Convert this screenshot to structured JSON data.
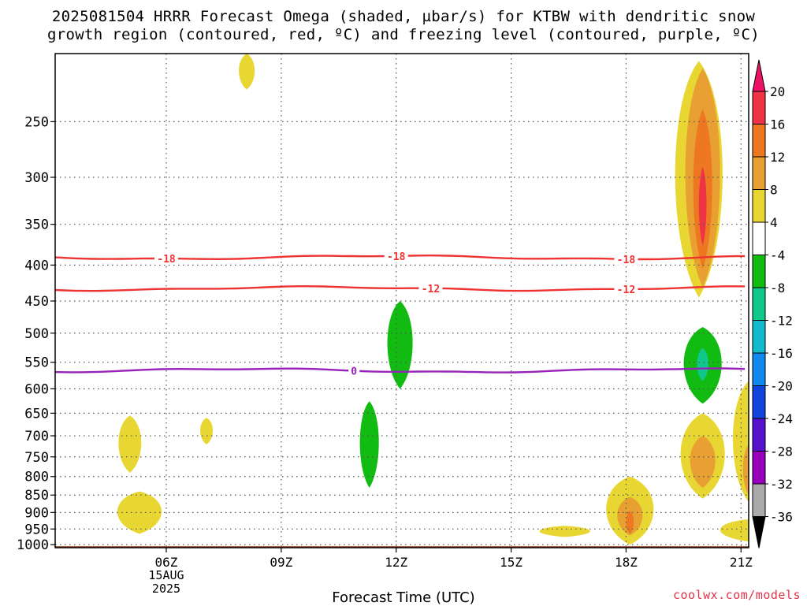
{
  "title_line1": "2025081504 HRRR Forecast Omega (shaded, µbar/s) for KTBW with dendritic snow",
  "title_line2": "growth region (contoured, red, ºC) and freezing level (contoured, purple, ºC)",
  "credit": "coolwx.com/models",
  "chart_data": {
    "type": "time-height cross section",
    "xlabel": "Forecast Time (UTC)",
    "x_ticks": [
      "06Z",
      "09Z",
      "12Z",
      "15Z",
      "18Z",
      "21Z"
    ],
    "x_tick_hours": [
      6,
      9,
      12,
      15,
      18,
      21
    ],
    "xlim_hours": [
      3.1,
      21.2
    ],
    "x_date_label": [
      "15AUG",
      "2025"
    ],
    "y_ticks": [
      250,
      300,
      350,
      400,
      450,
      500,
      550,
      600,
      650,
      700,
      750,
      800,
      850,
      900,
      950,
      1000
    ],
    "ylim_hPa": [
      200,
      1010
    ],
    "grid": true,
    "colorbar": {
      "levels": [
        20,
        16,
        12,
        8,
        4,
        -4,
        -8,
        -12,
        -16,
        -20,
        -24,
        -28,
        -32,
        -36
      ],
      "colors": [
        "#ee1166",
        "#ee3344",
        "#ee7722",
        "#e8a033",
        "#e8d633",
        "#ffffff",
        "#11bb11",
        "#11c88c",
        "#11bbcc",
        "#1188ee",
        "#1144dd",
        "#5511cc",
        "#9900bb",
        "#aaaaaa",
        "#000000"
      ],
      "placement": "right"
    },
    "contour_lines": [
      {
        "name": "-18",
        "color": "#ee3333",
        "pressure_hPa": 390,
        "labels_at_hours": [
          6.0,
          12.0,
          18.0
        ]
      },
      {
        "name": "-12",
        "color": "#ee3333",
        "pressure_hPa": 432,
        "labels_at_hours": [
          12.9,
          18.0
        ]
      },
      {
        "name": "0",
        "color": "#9922bb",
        "pressure_hPa": 565,
        "labels_at_hours": [
          10.9
        ]
      }
    ],
    "omega_regions": [
      {
        "hour": 5.05,
        "hw": 0.36,
        "top": 655,
        "bottom": 790,
        "value": 5
      },
      {
        "hour": 7.05,
        "hw": 0.2,
        "top": 660,
        "bottom": 720,
        "value": 5
      },
      {
        "hour": 8.1,
        "hw": 0.25,
        "top": 200,
        "bottom": 225,
        "value": 5
      },
      {
        "hour": 5.3,
        "hw": 0.7,
        "top": 840,
        "bottom": 965,
        "value": 5
      },
      {
        "hour": 11.3,
        "hw": 0.3,
        "top": 625,
        "bottom": 830,
        "value": -6
      },
      {
        "hour": 12.1,
        "hw": 0.4,
        "top": 450,
        "bottom": 600,
        "value": -6
      },
      {
        "hour": 16.4,
        "hw": 0.8,
        "top": 940,
        "bottom": 975,
        "value": 5
      },
      {
        "hour": 18.1,
        "hw": 0.75,
        "top": 800,
        "bottom": 1000,
        "value": 6
      },
      {
        "hour": 18.1,
        "hw": 0.4,
        "top": 855,
        "bottom": 970,
        "value": 9
      },
      {
        "hour": 18.1,
        "hw": 0.12,
        "top": 895,
        "bottom": 965,
        "value": 13
      },
      {
        "hour": 19.9,
        "hw": 0.75,
        "top": 205,
        "bottom": 445,
        "value": 5
      },
      {
        "hour": 20.0,
        "hw": 0.55,
        "top": 210,
        "bottom": 430,
        "value": 9
      },
      {
        "hour": 20.0,
        "hw": 0.3,
        "top": 240,
        "bottom": 405,
        "value": 13
      },
      {
        "hour": 20.0,
        "hw": 0.12,
        "top": 290,
        "bottom": 375,
        "value": 17
      },
      {
        "hour": 20.0,
        "hw": 0.6,
        "top": 490,
        "bottom": 630,
        "value": -6
      },
      {
        "hour": 20.0,
        "hw": 0.18,
        "top": 525,
        "bottom": 585,
        "value": -12
      },
      {
        "hour": 20.0,
        "hw": 0.7,
        "top": 650,
        "bottom": 860,
        "value": 5
      },
      {
        "hour": 20.0,
        "hw": 0.4,
        "top": 700,
        "bottom": 830,
        "value": 9
      },
      {
        "hour": 21.2,
        "hw": 0.5,
        "top": 585,
        "bottom": 870,
        "value": 5
      },
      {
        "hour": 21.2,
        "hw": 0.18,
        "top": 720,
        "bottom": 850,
        "value": 9
      },
      {
        "hour": 21.2,
        "hw": 0.9,
        "top": 920,
        "bottom": 990,
        "value": 5
      }
    ],
    "terrain": {
      "name": "surface",
      "color": "#a0522d",
      "pressure_hPa": 1005
    }
  }
}
